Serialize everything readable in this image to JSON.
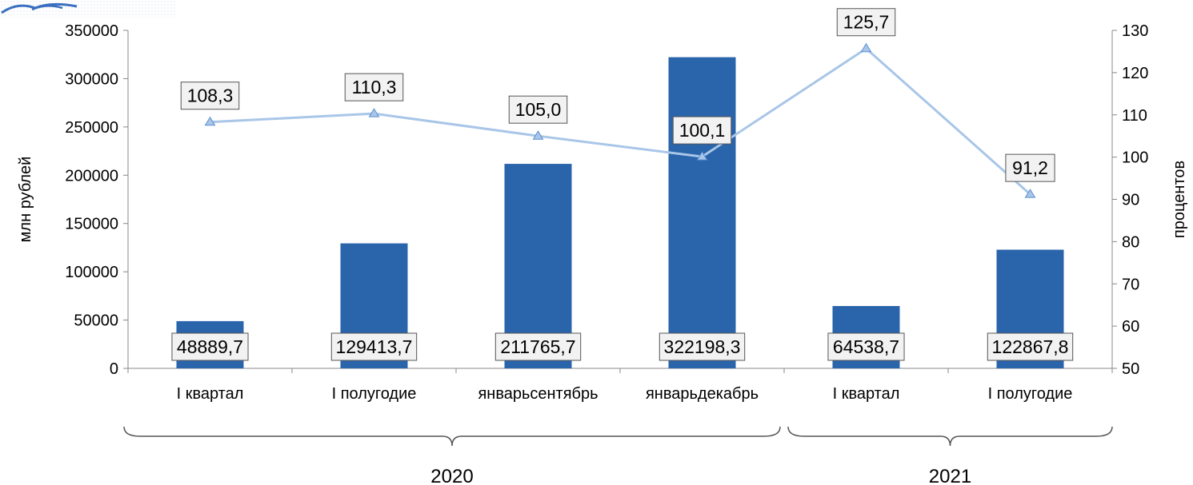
{
  "chart_data": {
    "type": "bar",
    "categories": [
      "I  квартал",
      "I полугодие",
      "январьсентябрь",
      "январьдекабрь",
      "I  квартал",
      "I полугодие"
    ],
    "groups": [
      {
        "label": "2020",
        "from": 0,
        "to": 3
      },
      {
        "label": "2021",
        "from": 4,
        "to": 5
      }
    ],
    "series": [
      {
        "type": "bar",
        "axis": "left",
        "color": "#2a64ab",
        "values": [
          48889.7,
          129413.7,
          211765.7,
          322198.3,
          64538.7,
          122867.8
        ],
        "labels": [
          "48889,7",
          "129413,7",
          "211765,7",
          "322198,3",
          "64538,7",
          "122867,8"
        ]
      },
      {
        "type": "line",
        "axis": "right",
        "color": "#a9c6e8",
        "marker_color": "#5b8fd1",
        "values": [
          108.3,
          110.3,
          105.0,
          100.1,
          125.7,
          91.2
        ],
        "labels": [
          "108,3",
          "110,3",
          "105,0",
          "100,1",
          "125,7",
          "91,2"
        ]
      }
    ],
    "ylabel": "млн рублей",
    "ylim": [
      0,
      350000
    ],
    "yticks": [
      "0",
      "50000",
      "100000",
      "150000",
      "200000",
      "250000",
      "300000",
      "350000"
    ],
    "y2label": "процентов",
    "y2lim": [
      50,
      130
    ],
    "y2ticks": [
      "50",
      "60",
      "70",
      "80",
      "90",
      "100",
      "110",
      "120",
      "130"
    ],
    "grid": false,
    "legend": "none"
  }
}
